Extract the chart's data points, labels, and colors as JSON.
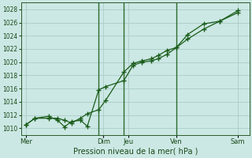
{
  "title": "",
  "xlabel": "Pression niveau de la mer( hPa )",
  "bg_color": "#cce8e4",
  "grid_color": "#aaccc8",
  "line_color": "#1a5c1a",
  "ylim": [
    1009,
    1029
  ],
  "yticks": [
    1010,
    1012,
    1014,
    1016,
    1018,
    1020,
    1022,
    1024,
    1026,
    1028
  ],
  "xlim": [
    0,
    100
  ],
  "day_labels": [
    "Mer",
    "Dim",
    "Jeu",
    "Ven",
    "Sam"
  ],
  "day_positions": [
    2,
    36,
    47,
    68,
    95
  ],
  "vline_positions": [
    34,
    45,
    68
  ],
  "series1_x": [
    2,
    6,
    12,
    16,
    19,
    22,
    26,
    29,
    34,
    37,
    45,
    49,
    53,
    57,
    60,
    64,
    68,
    73,
    80,
    87,
    95
  ],
  "series1_y": [
    1010.5,
    1011.5,
    1011.8,
    1011.2,
    1010.2,
    1011.0,
    1011.2,
    1010.3,
    1015.8,
    1016.3,
    1017.2,
    1019.5,
    1020.0,
    1020.2,
    1020.5,
    1021.2,
    1022.2,
    1023.5,
    1025.0,
    1026.2,
    1027.8
  ],
  "series2_x": [
    2,
    6,
    12,
    16,
    19,
    22,
    26,
    29,
    34,
    37,
    45,
    49,
    53,
    57,
    60,
    64,
    68,
    73,
    80,
    87,
    95
  ],
  "series2_y": [
    1010.5,
    1011.5,
    1011.5,
    1011.5,
    1011.2,
    1010.8,
    1011.5,
    1012.2,
    1012.8,
    1014.2,
    1018.5,
    1019.8,
    1020.2,
    1020.5,
    1021.0,
    1021.8,
    1022.2,
    1024.2,
    1025.8,
    1026.2,
    1027.5
  ]
}
